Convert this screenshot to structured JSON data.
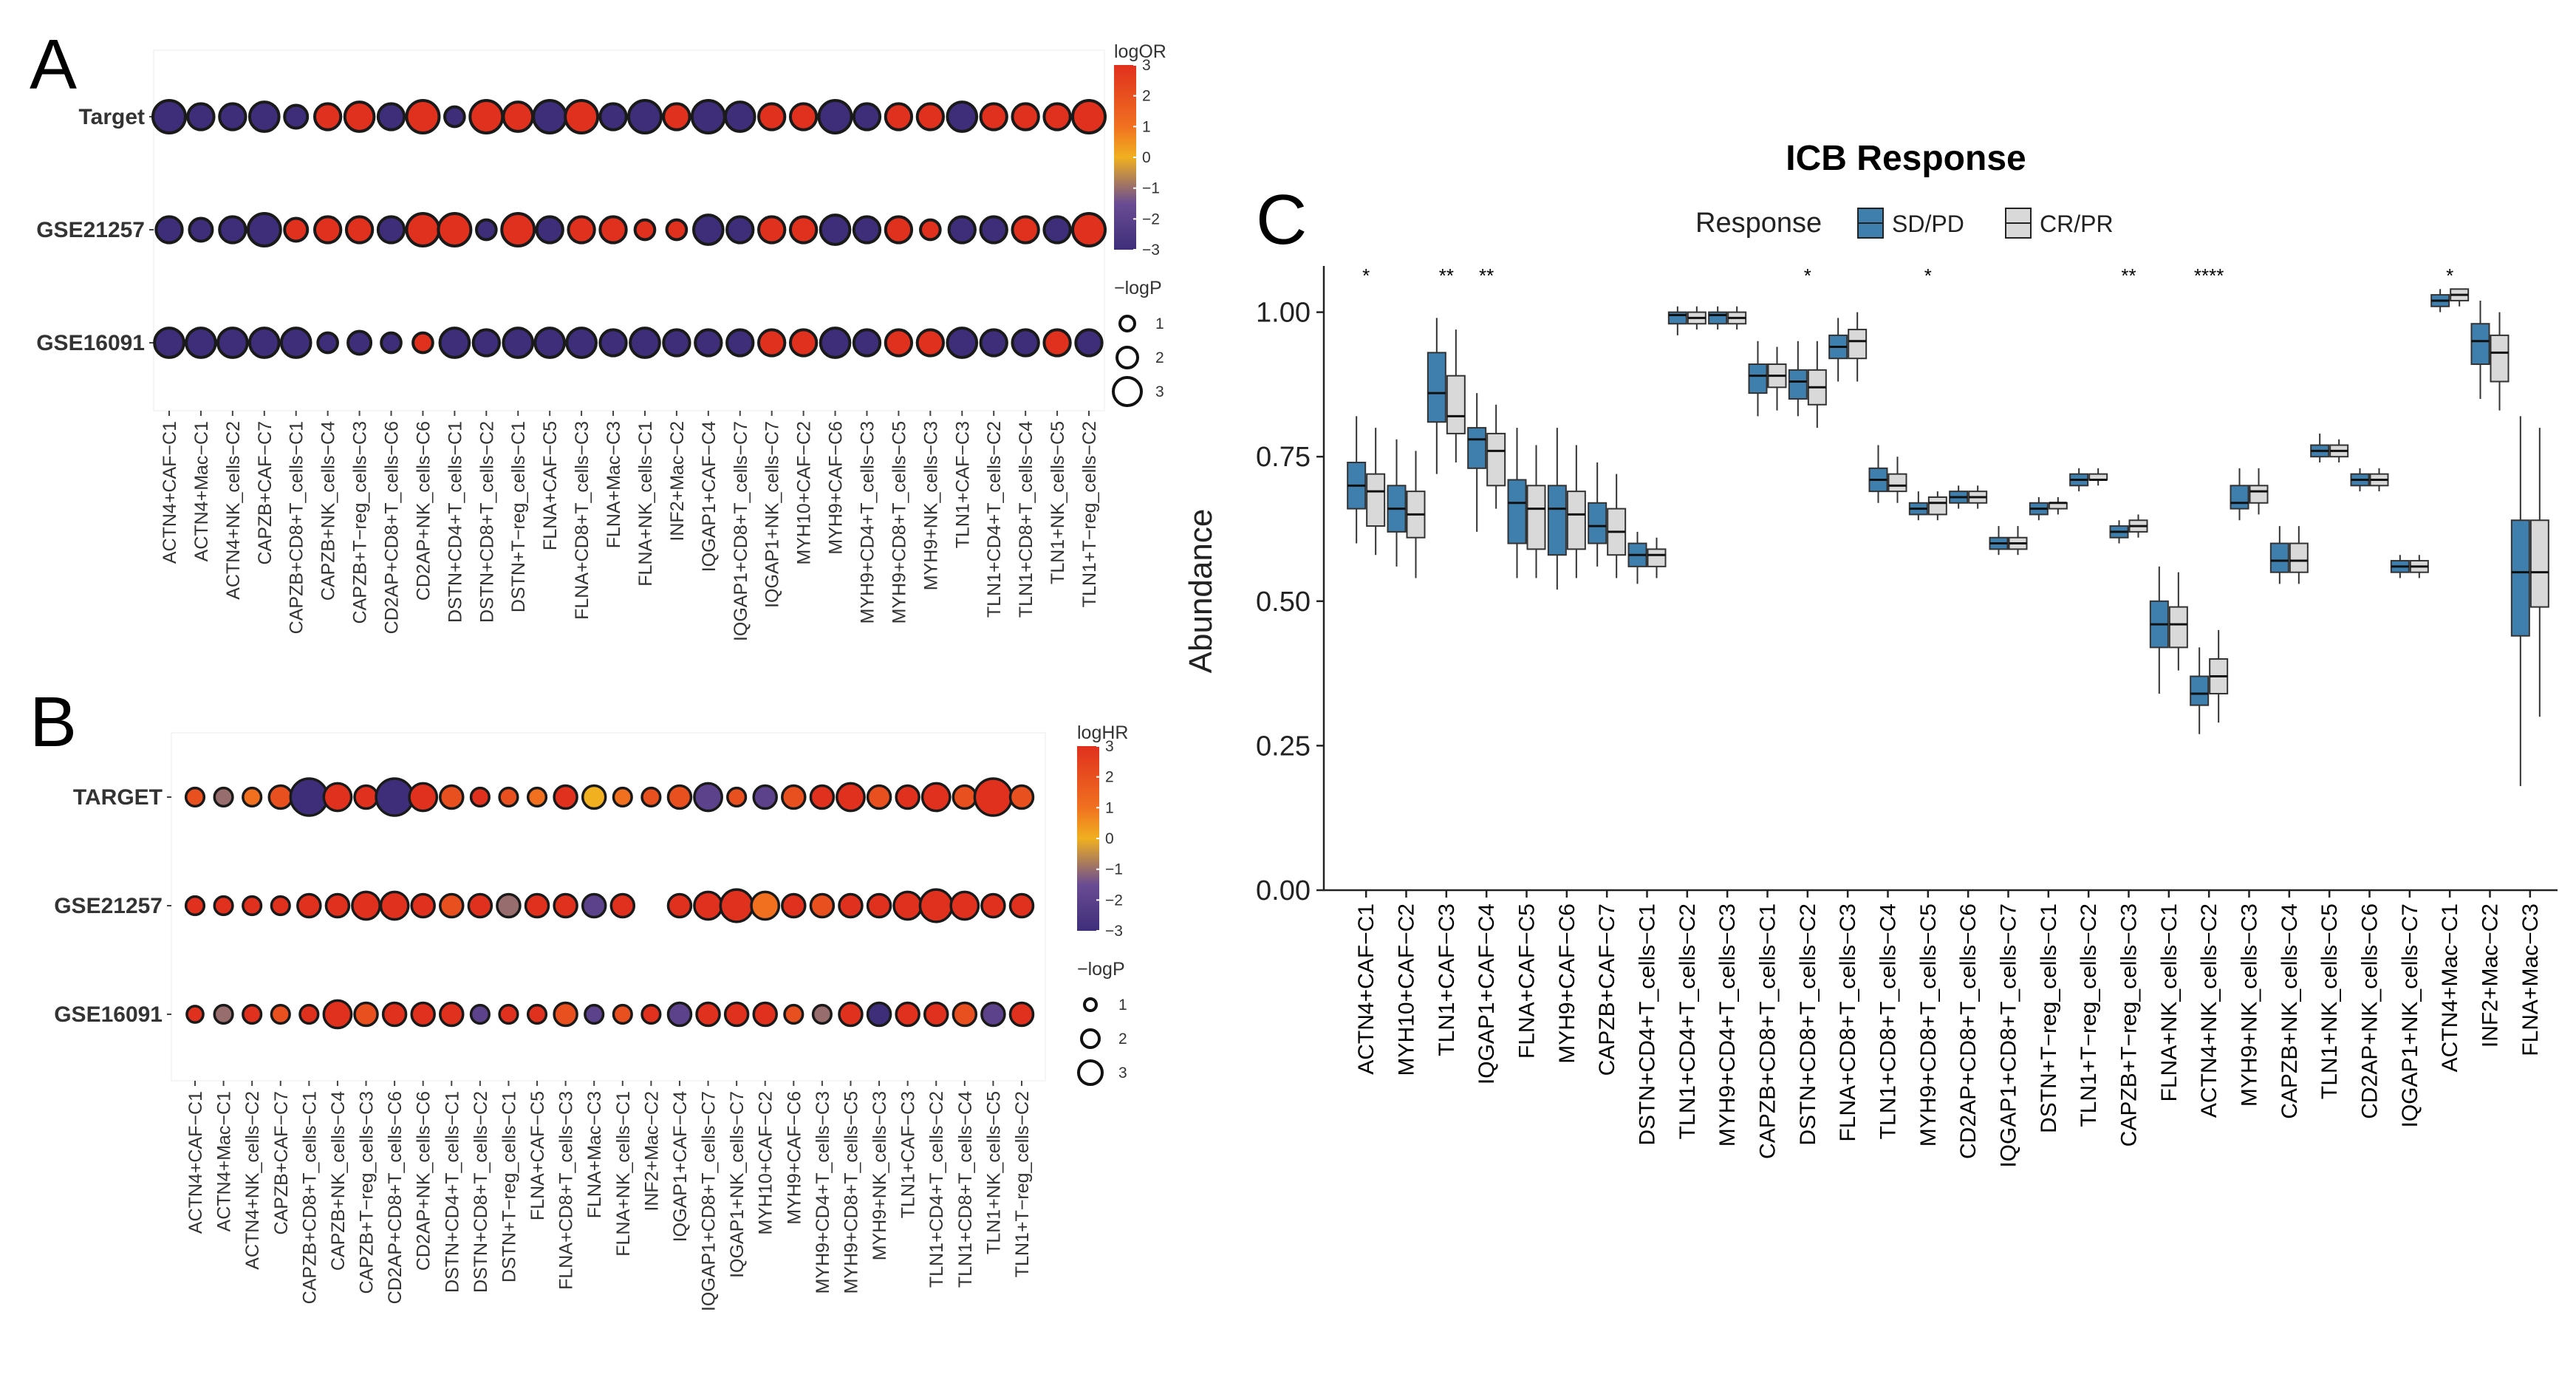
{
  "panels": {
    "A": "A",
    "B": "B",
    "C": "C"
  },
  "colors": {
    "low": "#3e2e7a",
    "mid_low": "#6a4c93",
    "mid": "#f0b020",
    "mid_high": "#f07020",
    "high": "#e0301e",
    "sd_pd": "#3f7fae",
    "cr_pr": "#d9d9d9"
  },
  "chart_data": [
    {
      "type": "dot",
      "panel": "A",
      "rows": [
        "Target",
        "GSE21257",
        "GSE16091"
      ],
      "columns": [
        "ACTN4+CAF−C1",
        "ACTN4+Mac−C1",
        "ACTN4+NK_cells−C2",
        "CAPZB+CAF−C7",
        "CAPZB+CD8+T_cells−C1",
        "CAPZB+NK_cells−C4",
        "CAPZB+T−reg_cells−C3",
        "CD2AP+CD8+T_cells−C6",
        "CD2AP+NK_cells−C6",
        "DSTN+CD4+T_cells−C1",
        "DSTN+CD8+T_cells−C2",
        "DSTN+T−reg_cells−C1",
        "FLNA+CAF−C5",
        "FLNA+CD8+T_cells−C3",
        "FLNA+Mac−C3",
        "FLNA+NK_cells−C1",
        "INF2+Mac−C2",
        "IQGAP1+CAF−C4",
        "IQGAP1+CD8+T_cells−C7",
        "IQGAP1+NK_cells−C7",
        "MYH10+CAF−C2",
        "MYH9+CAF−C6",
        "MYH9+CD4+T_cells−C3",
        "MYH9+CD8+T_cells−C5",
        "MYH9+NK_cells−C3",
        "TLN1+CAF−C3",
        "TLN1+CD4+T_cells−C2",
        "TLN1+CD8+T_cells−C4",
        "TLN1+NK_cells−C5",
        "TLN1+T−reg_cells−C2"
      ],
      "color_metric": "logOR",
      "size_metric": "−logP",
      "color_range": [
        -3,
        3
      ],
      "color_ticks": [
        "3",
        "2",
        "1",
        "0",
        "−1",
        "−2",
        "−3"
      ],
      "size_ticks": [
        "1",
        "2",
        "3"
      ],
      "values": [
        [
          -3,
          -3,
          -3,
          -3,
          -3,
          3,
          3,
          -3,
          3,
          -3,
          3,
          3,
          -3,
          3,
          -3,
          -3,
          3,
          -3,
          -3,
          3,
          3,
          -3,
          -3,
          3,
          3,
          -3,
          3,
          3,
          3,
          3
        ],
        [
          -3,
          -3,
          -3,
          -3,
          3,
          3,
          3,
          -3,
          3,
          3,
          -3,
          3,
          -3,
          3,
          3,
          3,
          3,
          -3,
          -3,
          3,
          3,
          -3,
          -3,
          3,
          3,
          -3,
          -3,
          3,
          -3,
          3
        ],
        [
          -3,
          -3,
          -3,
          -3,
          -3,
          -3,
          -3,
          -3,
          3,
          -3,
          -3,
          -3,
          -3,
          -3,
          -3,
          -3,
          -3,
          -3,
          -3,
          3,
          3,
          -3,
          -3,
          3,
          3,
          -3,
          -3,
          -3,
          3,
          -3
        ]
      ],
      "logp": [
        [
          3,
          2,
          2,
          2.5,
          1.5,
          2,
          2.5,
          2,
          3,
          1,
          3,
          2.5,
          3,
          3,
          2,
          3,
          2,
          3,
          2.5,
          2,
          2,
          3,
          2,
          2,
          2,
          2.5,
          2,
          2,
          2,
          3
        ],
        [
          2,
          1.5,
          2,
          3,
          1.5,
          2,
          2,
          2,
          3,
          3,
          1,
          3,
          2,
          2,
          2,
          1,
          1,
          2.5,
          2,
          2,
          2,
          2.5,
          2,
          2,
          1,
          2,
          2,
          2,
          2,
          3
        ],
        [
          2.5,
          2.5,
          2.5,
          2.5,
          2.5,
          1,
          1.5,
          1,
          1,
          2.5,
          2,
          2.5,
          2.5,
          2.5,
          2,
          2.5,
          2,
          2,
          2,
          2,
          2,
          2.5,
          2,
          2,
          2,
          2.5,
          2,
          2,
          2,
          2
        ]
      ]
    },
    {
      "type": "dot",
      "panel": "B",
      "rows": [
        "TARGET",
        "GSE21257",
        "GSE16091"
      ],
      "columns": [
        "ACTN4+CAF−C1",
        "ACTN4+Mac−C1",
        "ACTN4+NK_cells−C2",
        "CAPZB+CAF−C7",
        "CAPZB+CD8+T_cells−C1",
        "CAPZB+NK_cells−C4",
        "CAPZB+T−reg_cells−C3",
        "CD2AP+CD8+T_cells−C6",
        "CD2AP+NK_cells−C6",
        "DSTN+CD4+T_cells−C1",
        "DSTN+CD8+T_cells−C2",
        "DSTN+T−reg_cells−C1",
        "FLNA+CAF−C5",
        "FLNA+CD8+T_cells−C3",
        "FLNA+Mac−C3",
        "FLNA+NK_cells−C1",
        "INF2+Mac−C2",
        "IQGAP1+CAF−C4",
        "IQGAP1+CD8+T_cells−C7",
        "IQGAP1+NK_cells−C7",
        "MYH10+CAF−C2",
        "MYH9+CAF−C6",
        "MYH9+CD4+T_cells−C3",
        "MYH9+CD8+T_cells−C5",
        "MYH9+NK_cells−C3",
        "TLN1+CAF−C3",
        "TLN1+CD4+T_cells−C2",
        "TLN1+CD8+T_cells−C4",
        "TLN1+NK_cells−C5",
        "TLN1+T−reg_cells−C2"
      ],
      "color_metric": "logHR",
      "size_metric": "−logP",
      "color_range": [
        -3,
        3
      ],
      "color_ticks": [
        "3",
        "2",
        "1",
        "0",
        "−1",
        "−2",
        "−3"
      ],
      "size_ticks": [
        "1",
        "2",
        "3"
      ],
      "values": [
        [
          2,
          -1,
          1,
          2,
          -3,
          3,
          3,
          -3,
          3,
          2,
          3,
          2,
          1,
          3,
          0,
          1,
          2,
          2,
          -2,
          2,
          -2,
          2,
          3,
          3,
          2,
          3,
          3,
          2,
          3,
          2
        ],
        [
          3,
          3,
          3,
          3,
          3,
          3,
          3,
          3,
          3,
          2,
          3,
          -1,
          3,
          3,
          -2,
          3,
          null,
          3,
          3,
          3,
          1,
          3,
          2,
          3,
          3,
          3,
          3,
          3,
          3,
          3
        ],
        [
          3,
          -1,
          3,
          2,
          3,
          3,
          2,
          3,
          3,
          3,
          -2,
          3,
          3,
          2,
          -2,
          2,
          3,
          -2,
          3,
          3,
          3,
          2,
          -1,
          3,
          -3,
          3,
          3,
          2,
          -2,
          3
        ]
      ],
      "logp": [
        [
          1,
          1,
          1,
          1.5,
          3,
          2,
          1.5,
          3,
          2,
          1.5,
          1,
          1,
          1,
          1.5,
          1.5,
          1,
          1,
          1.5,
          2,
          1,
          1.5,
          1.5,
          1.5,
          2,
          1.5,
          1.5,
          2,
          1.5,
          3.5,
          1.5
        ],
        [
          1,
          1,
          1,
          1,
          1.5,
          1.5,
          2,
          2,
          1.5,
          1.5,
          1.5,
          1.5,
          1.5,
          1.5,
          1.5,
          1.5,
          null,
          1.5,
          2,
          2.5,
          2,
          1.5,
          1.5,
          1.5,
          1.5,
          2,
          2.5,
          2,
          1.5,
          1.5
        ],
        [
          0.8,
          1,
          1,
          1,
          1,
          2,
          1.5,
          1.5,
          1.5,
          1.5,
          1,
          1,
          1,
          1.5,
          1,
          1,
          1,
          1.5,
          1.5,
          1.5,
          1.5,
          1,
          1,
          1.5,
          1.5,
          1.5,
          1.5,
          1.5,
          1.5,
          1.5
        ]
      ]
    },
    {
      "type": "box",
      "panel": "C",
      "title": "ICB Response",
      "legend_title": "Response",
      "series": [
        {
          "name": "SD/PD",
          "color": "#3f7fae"
        },
        {
          "name": "CR/PR",
          "color": "#d9d9d9"
        }
      ],
      "xlabel": "",
      "ylabel": "Abundance",
      "ylim": [
        0,
        1.08
      ],
      "yticks": [
        "0.00",
        "0.25",
        "0.50",
        "0.75",
        "1.00"
      ],
      "ytick_values": [
        0,
        0.25,
        0.5,
        0.75,
        1.0
      ],
      "categories": [
        "ACTN4+CAF−C1",
        "MYH10+CAF−C2",
        "TLN1+CAF−C3",
        "IQGAP1+CAF−C4",
        "FLNA+CAF−C5",
        "MYH9+CAF−C6",
        "CAPZB+CAF−C7",
        "DSTN+CD4+T_cells−C1",
        "TLN1+CD4+T_cells−C2",
        "MYH9+CD4+T_cells−C3",
        "CAPZB+CD8+T_cells−C1",
        "DSTN+CD8+T_cells−C2",
        "FLNA+CD8+T_cells−C3",
        "TLN1+CD8+T_cells−C4",
        "MYH9+CD8+T_cells−C5",
        "CD2AP+CD8+T_cells−C6",
        "IQGAP1+CD8+T_cells−C7",
        "DSTN+T−reg_cells−C1",
        "TLN1+T−reg_cells−C2",
        "CAPZB+T−reg_cells−C3",
        "FLNA+NK_cells−C1",
        "ACTN4+NK_cells−C2",
        "MYH9+NK_cells−C3",
        "CAPZB+NK_cells−C4",
        "TLN1+NK_cells−C5",
        "CD2AP+NK_cells−C6",
        "IQGAP1+NK_cells−C7",
        "ACTN4+Mac−C1",
        "INF2+Mac−C2",
        "FLNA+Mac−C3"
      ],
      "significance": [
        "*",
        "",
        "**",
        "**",
        "",
        "",
        "",
        "",
        "",
        "",
        "",
        "*",
        "",
        "",
        "*",
        "",
        "",
        "",
        "",
        "**",
        "",
        "****",
        "",
        "",
        "",
        "",
        "",
        "*",
        "",
        ""
      ],
      "boxes": {
        "SD/PD": [
          [
            0.6,
            0.66,
            0.7,
            0.74,
            0.82
          ],
          [
            0.56,
            0.62,
            0.66,
            0.7,
            0.78
          ],
          [
            0.72,
            0.81,
            0.86,
            0.93,
            0.99
          ],
          [
            0.62,
            0.73,
            0.78,
            0.8,
            0.86
          ],
          [
            0.54,
            0.6,
            0.67,
            0.71,
            0.8
          ],
          [
            0.52,
            0.58,
            0.66,
            0.7,
            0.8
          ],
          [
            0.56,
            0.6,
            0.63,
            0.67,
            0.74
          ],
          [
            0.53,
            0.56,
            0.58,
            0.6,
            0.62
          ],
          [
            0.96,
            0.98,
            0.995,
            1.0,
            1.01
          ],
          [
            0.97,
            0.98,
            0.995,
            1.0,
            1.01
          ],
          [
            0.82,
            0.86,
            0.89,
            0.91,
            0.95
          ],
          [
            0.82,
            0.85,
            0.88,
            0.9,
            0.95
          ],
          [
            0.88,
            0.92,
            0.94,
            0.96,
            0.99
          ],
          [
            0.67,
            0.69,
            0.71,
            0.73,
            0.77
          ],
          [
            0.64,
            0.65,
            0.66,
            0.67,
            0.69
          ],
          [
            0.66,
            0.67,
            0.68,
            0.69,
            0.7
          ],
          [
            0.58,
            0.59,
            0.6,
            0.61,
            0.63
          ],
          [
            0.64,
            0.65,
            0.66,
            0.67,
            0.68
          ],
          [
            0.69,
            0.7,
            0.71,
            0.72,
            0.73
          ],
          [
            0.6,
            0.61,
            0.62,
            0.63,
            0.64
          ],
          [
            0.34,
            0.42,
            0.46,
            0.5,
            0.56
          ],
          [
            0.27,
            0.32,
            0.34,
            0.37,
            0.42
          ],
          [
            0.64,
            0.66,
            0.67,
            0.7,
            0.73
          ],
          [
            0.53,
            0.55,
            0.57,
            0.6,
            0.63
          ],
          [
            0.74,
            0.75,
            0.76,
            0.77,
            0.79
          ],
          [
            0.69,
            0.7,
            0.71,
            0.72,
            0.73
          ],
          [
            0.54,
            0.55,
            0.56,
            0.57,
            0.58
          ],
          [
            1.0,
            1.01,
            1.02,
            1.03,
            1.04
          ],
          [
            0.85,
            0.91,
            0.95,
            0.98,
            1.02
          ],
          [
            0.18,
            0.44,
            0.55,
            0.64,
            0.82
          ]
        ],
        "CR/PR": [
          [
            0.58,
            0.63,
            0.69,
            0.72,
            0.8
          ],
          [
            0.54,
            0.61,
            0.65,
            0.69,
            0.76
          ],
          [
            0.74,
            0.79,
            0.82,
            0.89,
            0.97
          ],
          [
            0.66,
            0.7,
            0.76,
            0.79,
            0.84
          ],
          [
            0.54,
            0.59,
            0.66,
            0.7,
            0.77
          ],
          [
            0.54,
            0.59,
            0.65,
            0.69,
            0.77
          ],
          [
            0.54,
            0.58,
            0.62,
            0.66,
            0.72
          ],
          [
            0.54,
            0.56,
            0.58,
            0.59,
            0.61
          ],
          [
            0.97,
            0.98,
            0.99,
            1.0,
            1.01
          ],
          [
            0.97,
            0.98,
            0.99,
            1.0,
            1.01
          ],
          [
            0.83,
            0.87,
            0.89,
            0.91,
            0.94
          ],
          [
            0.8,
            0.84,
            0.87,
            0.9,
            0.95
          ],
          [
            0.88,
            0.92,
            0.95,
            0.97,
            1.0
          ],
          [
            0.67,
            0.69,
            0.7,
            0.72,
            0.75
          ],
          [
            0.64,
            0.65,
            0.67,
            0.68,
            0.69
          ],
          [
            0.66,
            0.67,
            0.68,
            0.69,
            0.7
          ],
          [
            0.58,
            0.59,
            0.6,
            0.61,
            0.63
          ],
          [
            0.65,
            0.66,
            0.67,
            0.67,
            0.68
          ],
          [
            0.7,
            0.71,
            0.71,
            0.72,
            0.73
          ],
          [
            0.61,
            0.62,
            0.63,
            0.64,
            0.65
          ],
          [
            0.38,
            0.42,
            0.46,
            0.49,
            0.55
          ],
          [
            0.29,
            0.34,
            0.37,
            0.4,
            0.45
          ],
          [
            0.65,
            0.67,
            0.69,
            0.7,
            0.73
          ],
          [
            0.53,
            0.55,
            0.57,
            0.6,
            0.63
          ],
          [
            0.74,
            0.75,
            0.76,
            0.77,
            0.78
          ],
          [
            0.69,
            0.7,
            0.71,
            0.72,
            0.73
          ],
          [
            0.54,
            0.55,
            0.56,
            0.57,
            0.58
          ],
          [
            1.01,
            1.02,
            1.03,
            1.04,
            1.04
          ],
          [
            0.83,
            0.88,
            0.93,
            0.96,
            1.0
          ],
          [
            0.3,
            0.49,
            0.55,
            0.64,
            0.8
          ]
        ]
      }
    }
  ]
}
